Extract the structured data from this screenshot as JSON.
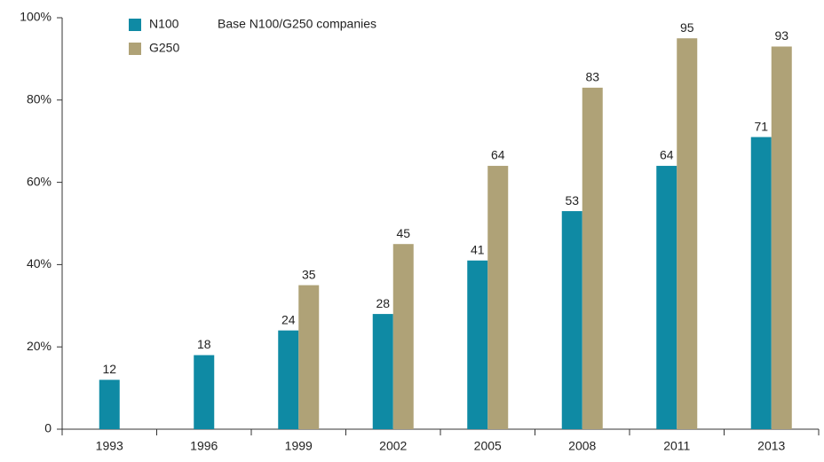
{
  "chart_data": {
    "type": "bar",
    "annotation": "Base N100/G250 companies",
    "categories": [
      "1993",
      "1996",
      "1999",
      "2002",
      "2005",
      "2008",
      "2011",
      "2013"
    ],
    "series": [
      {
        "name": "N100",
        "color": "#0f8aa4",
        "values": [
          12,
          18,
          24,
          28,
          41,
          53,
          64,
          71
        ]
      },
      {
        "name": "G250",
        "color": "#afa277",
        "values": [
          null,
          null,
          35,
          45,
          64,
          83,
          95,
          93
        ]
      }
    ],
    "ylim": [
      0,
      100
    ],
    "yticks": [
      0,
      {
        "value": 20,
        "label": "20%"
      },
      {
        "value": 40,
        "label": "40%"
      },
      {
        "value": 60,
        "label": "60%"
      },
      {
        "value": 80,
        "label": "80%"
      },
      {
        "value": 100,
        "label": "100%"
      }
    ]
  }
}
